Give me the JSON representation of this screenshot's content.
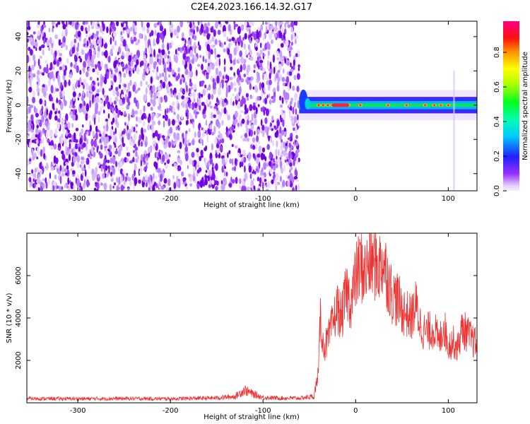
{
  "title": "C2E4.2023.166.14.32.G17",
  "colors": {
    "snr_line": "#ee3333",
    "speckle": "#7a12e8",
    "axis": "#000000"
  },
  "chart_data": [
    {
      "type": "heatmap",
      "xlabel": "Height of straight line (km)",
      "ylabel": "Frequency (Hz)",
      "xlim": [
        -355,
        131
      ],
      "ylim": [
        -50,
        49
      ],
      "xticks": [
        -300,
        -200,
        -100,
        0,
        100
      ],
      "yticks": [
        -40,
        -20,
        0,
        20,
        40
      ],
      "grid": false,
      "noise_region_x": [
        -355,
        -61
      ],
      "signal_band": {
        "x_start": -61,
        "center_frequency_hz": 0,
        "approx_halfwidth_hz": 4
      },
      "colorbar": {
        "label": "Normalized spectral amplitude",
        "ticks": [
          0.0,
          0.2,
          0.4,
          0.6,
          0.8
        ],
        "range": [
          0,
          0.98
        ],
        "colormap": "rainbow"
      }
    },
    {
      "type": "line",
      "xlabel": "Height of straight line (km)",
      "ylabel": "SNR (10 * v/v)",
      "xlim": [
        -355,
        131
      ],
      "ylim": [
        0,
        8000
      ],
      "xticks": [
        -300,
        -200,
        -100,
        0,
        100
      ],
      "yticks": [
        2000,
        4000,
        6000
      ],
      "grid": false,
      "series": [
        {
          "x": [
            -355,
            -300,
            -250,
            -200,
            -150,
            -130,
            -120,
            -110,
            -100,
            -80,
            -60,
            -45,
            -40,
            -38,
            -35,
            -30,
            -25,
            -20,
            -15,
            -10,
            -5,
            0,
            5,
            10,
            15,
            20,
            25,
            30,
            35,
            40,
            45,
            50,
            55,
            60,
            65,
            70,
            75,
            80,
            85,
            90,
            95,
            100,
            105,
            110,
            115,
            120,
            125,
            131
          ],
          "values": [
            200,
            190,
            200,
            190,
            230,
            300,
            600,
            400,
            250,
            220,
            220,
            300,
            1500,
            4200,
            2600,
            2900,
            3700,
            4500,
            4000,
            5300,
            4700,
            5900,
            6500,
            6100,
            6600,
            6600,
            6400,
            6700,
            5800,
            5000,
            4900,
            4400,
            4200,
            4000,
            4600,
            3700,
            3300,
            3400,
            3500,
            2800,
            3700,
            2700,
            2900,
            2600,
            3500,
            3300,
            3000,
            2700
          ]
        }
      ]
    }
  ]
}
